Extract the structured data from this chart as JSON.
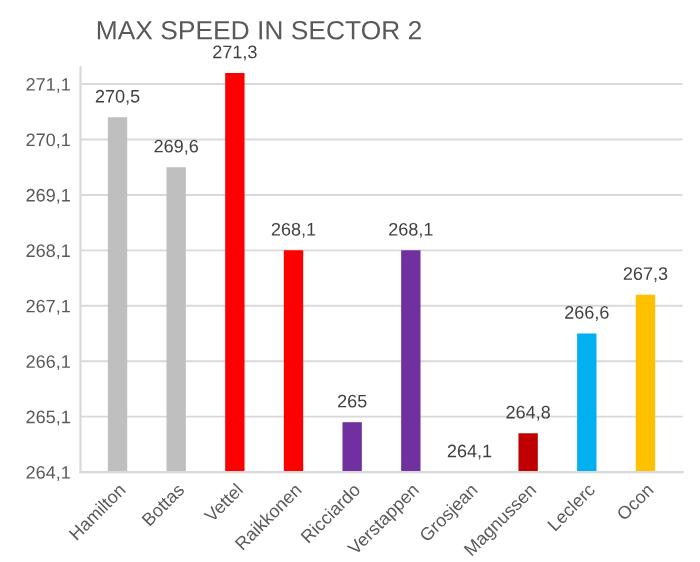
{
  "chart_data": {
    "type": "bar",
    "title": "MAX SPEED IN SECTOR 2",
    "categories": [
      "Hamilton",
      "Bottas",
      "Vettel",
      "Raikkonen",
      "Ricciardo",
      "Verstappen",
      "Grosjean",
      "Magnussen",
      "Leclerc",
      "Ocon"
    ],
    "values": [
      270.5,
      269.6,
      271.3,
      268.1,
      265,
      268.1,
      264.1,
      264.8,
      266.6,
      267.3
    ],
    "colors": [
      "#bfbfbf",
      "#bfbfbf",
      "#ff0000",
      "#ff0000",
      "#7030a0",
      "#7030a0",
      "#ffffff",
      "#c00000",
      "#00b0f0",
      "#ffc000"
    ],
    "value_labels": [
      "270,5",
      "269,6",
      "271,3",
      "268,1",
      "265",
      "268,1",
      "264,1",
      "264,8",
      "266,6",
      "267,3"
    ],
    "ylim": [
      264.1,
      271.4
    ],
    "yticks": [
      {
        "value": 264.1,
        "label": "264,1"
      },
      {
        "value": 265.1,
        "label": "265,1"
      },
      {
        "value": 266.1,
        "label": "266,1"
      },
      {
        "value": 267.1,
        "label": "267,1"
      },
      {
        "value": 268.1,
        "label": "268,1"
      },
      {
        "value": 269.1,
        "label": "269,1"
      },
      {
        "value": 270.1,
        "label": "270,1"
      },
      {
        "value": 271.1,
        "label": "271,1"
      }
    ],
    "grid": "y"
  }
}
